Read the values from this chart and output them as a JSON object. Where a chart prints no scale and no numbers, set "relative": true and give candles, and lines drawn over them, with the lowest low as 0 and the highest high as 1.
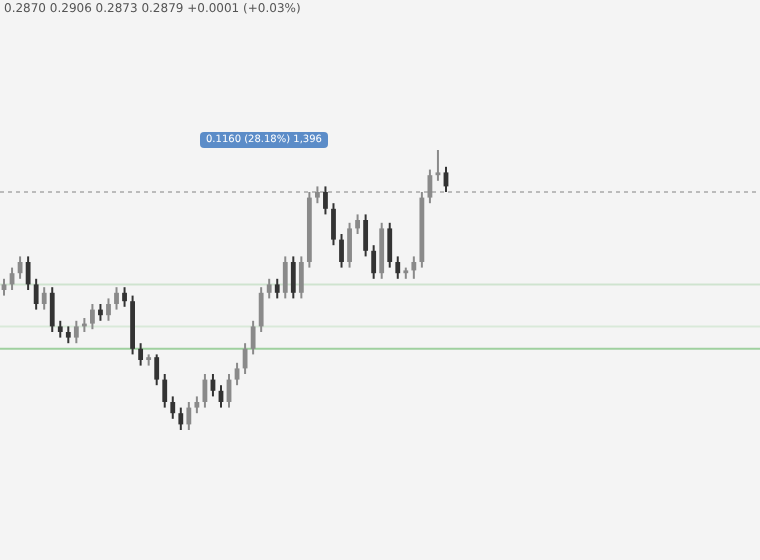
{
  "chart_data": {
    "type": "candlestick",
    "relative": true,
    "colors": [
      "#8a8a8a",
      "#8a8a8a",
      "#8a8a8a",
      "#333333",
      "#333333",
      "#8a8a8a",
      "#333333",
      "#333333",
      "#333333",
      "#8a8a8a",
      "#8a8a8a",
      "#8a8a8a",
      "#333333",
      "#8a8a8a",
      "#8a8a8a",
      "#333333",
      "#333333",
      "#333333",
      "#8a8a8a",
      "#333333",
      "#333333",
      "#333333",
      "#333333",
      "#8a8a8a",
      "#8a8a8a",
      "#8a8a8a",
      "#333333",
      "#333333",
      "#8a8a8a",
      "#8a8a8a",
      "#8a8a8a",
      "#8a8a8a",
      "#8a8a8a",
      "#8a8a8a",
      "#333333",
      "#8a8a8a",
      "#333333",
      "#8a8a8a",
      "#8a8a8a",
      "#8a8a8a",
      "#333333",
      "#333333",
      "#333333",
      "#8a8a8a",
      "#8a8a8a",
      "#333333",
      "#333333",
      "#8a8a8a",
      "#333333",
      "#333333",
      "#8a8a8a",
      "#8a8a8a",
      "#8a8a8a",
      "#8a8a8a",
      "#8a8a8a",
      "#333333"
    ],
    "categories": [
      null,
      null,
      null,
      null,
      null,
      null,
      null,
      null,
      null,
      null,
      null,
      null,
      null,
      null,
      null,
      null,
      null,
      null,
      null,
      null,
      null,
      null,
      null,
      null,
      null,
      null,
      null,
      null,
      null,
      null,
      null,
      null,
      null,
      null,
      null,
      null,
      null,
      null,
      null,
      null,
      null,
      null,
      null,
      null,
      null,
      null,
      null,
      null,
      null,
      null,
      null,
      null,
      null,
      null,
      null,
      null
    ],
    "ohlc": [
      [
        0.5,
        0.54,
        0.48,
        0.52
      ],
      [
        0.52,
        0.58,
        0.5,
        0.56
      ],
      [
        0.56,
        0.62,
        0.54,
        0.6
      ],
      [
        0.6,
        0.62,
        0.5,
        0.52
      ],
      [
        0.52,
        0.54,
        0.43,
        0.45
      ],
      [
        0.45,
        0.51,
        0.43,
        0.49
      ],
      [
        0.49,
        0.51,
        0.35,
        0.37
      ],
      [
        0.37,
        0.39,
        0.33,
        0.35
      ],
      [
        0.35,
        0.37,
        0.31,
        0.33
      ],
      [
        0.33,
        0.39,
        0.31,
        0.37
      ],
      [
        0.37,
        0.4,
        0.35,
        0.38
      ],
      [
        0.38,
        0.45,
        0.36,
        0.43
      ],
      [
        0.43,
        0.45,
        0.39,
        0.41
      ],
      [
        0.41,
        0.47,
        0.39,
        0.45
      ],
      [
        0.45,
        0.51,
        0.43,
        0.49
      ],
      [
        0.49,
        0.51,
        0.44,
        0.46
      ],
      [
        0.46,
        0.48,
        0.27,
        0.29
      ],
      [
        0.29,
        0.31,
        0.23,
        0.25
      ],
      [
        0.25,
        0.27,
        0.23,
        0.26
      ],
      [
        0.26,
        0.27,
        0.16,
        0.18
      ],
      [
        0.18,
        0.2,
        0.08,
        0.1
      ],
      [
        0.1,
        0.12,
        0.04,
        0.06
      ],
      [
        0.06,
        0.08,
        0,
        0.02
      ],
      [
        0.02,
        0.1,
        0,
        0.08
      ],
      [
        0.08,
        0.12,
        0.06,
        0.1
      ],
      [
        0.1,
        0.2,
        0.08,
        0.18
      ],
      [
        0.18,
        0.2,
        0.12,
        0.14
      ],
      [
        0.14,
        0.16,
        0.08,
        0.1
      ],
      [
        0.1,
        0.2,
        0.08,
        0.18
      ],
      [
        0.18,
        0.24,
        0.16,
        0.22
      ],
      [
        0.22,
        0.31,
        0.2,
        0.29
      ],
      [
        0.29,
        0.39,
        0.27,
        0.37
      ],
      [
        0.37,
        0.51,
        0.35,
        0.49
      ],
      [
        0.49,
        0.54,
        0.47,
        0.52
      ],
      [
        0.52,
        0.54,
        0.47,
        0.49
      ],
      [
        0.49,
        0.62,
        0.47,
        0.6
      ],
      [
        0.6,
        0.62,
        0.47,
        0.49
      ],
      [
        0.49,
        0.62,
        0.47,
        0.6
      ],
      [
        0.6,
        0.85,
        0.58,
        0.83
      ],
      [
        0.83,
        0.87,
        0.81,
        0.85
      ],
      [
        0.85,
        0.87,
        0.77,
        0.79
      ],
      [
        0.79,
        0.81,
        0.66,
        0.68
      ],
      [
        0.68,
        0.7,
        0.58,
        0.6
      ],
      [
        0.6,
        0.74,
        0.58,
        0.72
      ],
      [
        0.72,
        0.77,
        0.7,
        0.75
      ],
      [
        0.75,
        0.77,
        0.62,
        0.64
      ],
      [
        0.64,
        0.66,
        0.54,
        0.56
      ],
      [
        0.56,
        0.74,
        0.54,
        0.72
      ],
      [
        0.72,
        0.74,
        0.58,
        0.6
      ],
      [
        0.6,
        0.62,
        0.54,
        0.56
      ],
      [
        0.56,
        0.58,
        0.54,
        0.57
      ],
      [
        0.57,
        0.62,
        0.54,
        0.6
      ],
      [
        0.6,
        0.85,
        0.58,
        0.83
      ],
      [
        0.83,
        0.93,
        0.81,
        0.91
      ],
      [
        0.91,
        1,
        0.89,
        0.92
      ],
      [
        0.92,
        0.94,
        0.85,
        0.87
      ]
    ],
    "ref_lines": [
      {
        "axis": "y",
        "value": 0.85,
        "color": "#bbbbbb",
        "line_style": "dotted"
      },
      {
        "axis": "y",
        "value": 0.52,
        "color": "#cfe3cf",
        "line_style": "solid"
      },
      {
        "axis": "y",
        "value": 0.37,
        "color": "#d9e9d9",
        "line_style": "solid"
      },
      {
        "axis": "y",
        "value": 0.29,
        "color": "#9fd09f",
        "line_style": "solid"
      }
    ],
    "annotations": [
      "0.2870 0.2906 0.2873 0.2879 +0.0001 (+0.03%)",
      "0.1160 (28.18%) 1,396"
    ]
  }
}
